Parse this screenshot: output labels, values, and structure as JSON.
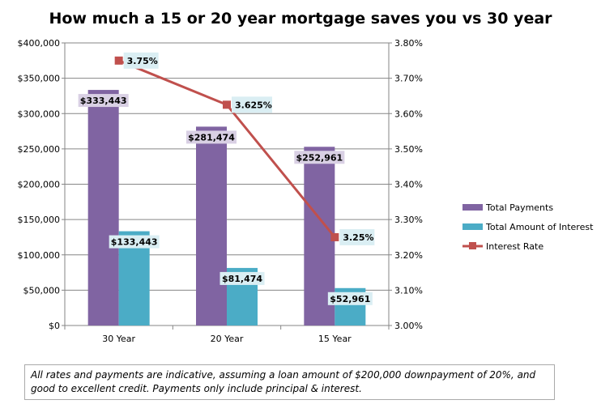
{
  "chart_data": {
    "type": "bar",
    "title": "How much a 15 or 20 year mortgage saves you vs 30 year",
    "categories": [
      "30 Year",
      "20 Year",
      "15 Year"
    ],
    "series": [
      {
        "name": "Total Payments",
        "type": "bar",
        "axis": "left",
        "color": "#8064A2",
        "values": [
          333443,
          281474,
          252961
        ],
        "labels": [
          "$333,443",
          "$281,474",
          "$252,961"
        ]
      },
      {
        "name": "Total Amount of Interest",
        "type": "bar",
        "axis": "left",
        "color": "#4BACC6",
        "values": [
          133443,
          81474,
          52961
        ],
        "labels": [
          "$133,443",
          "$81,474",
          "$52,961"
        ]
      },
      {
        "name": "Interest Rate",
        "type": "line",
        "axis": "right",
        "color": "#C0504D",
        "values": [
          3.75,
          3.625,
          3.25
        ],
        "labels": [
          "3.75%",
          "3.625%",
          "3.25%"
        ]
      }
    ],
    "y_left": {
      "range": [
        0,
        400000
      ],
      "ticks": [
        "$0",
        "$50,000",
        "$100,000",
        "$150,000",
        "$200,000",
        "$250,000",
        "$300,000",
        "$350,000",
        "$400,000"
      ]
    },
    "y_right": {
      "range": [
        3.0,
        3.8
      ],
      "ticks": [
        "3.00%",
        "3.10%",
        "3.20%",
        "3.30%",
        "3.40%",
        "3.50%",
        "3.60%",
        "3.70%",
        "3.80%"
      ]
    },
    "grid": true,
    "legend": "right"
  },
  "note": "All rates and payments are indicative, assuming a loan amount of $200,000  downpayment of 20%, and good to excellent credit. Payments only include principal & interest."
}
